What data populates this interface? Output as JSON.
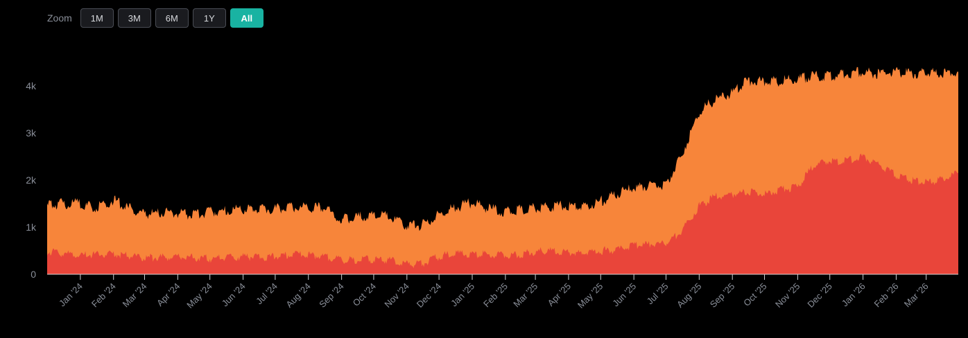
{
  "zoom": {
    "label": "Zoom",
    "buttons": [
      {
        "label": "1M",
        "active": false
      },
      {
        "label": "3M",
        "active": false
      },
      {
        "label": "6M",
        "active": false
      },
      {
        "label": "1Y",
        "active": false
      },
      {
        "label": "All",
        "active": true
      }
    ]
  },
  "colors": {
    "background": "#000000",
    "series_top": "#f7853a",
    "series_bottom": "#e9453a",
    "accent": "#19b3a2"
  },
  "chart_data": {
    "type": "area",
    "stacked": true,
    "grid": false,
    "legend": "none",
    "ylim": [
      0,
      4500
    ],
    "y_ticks": [
      {
        "value": 0,
        "label": "0"
      },
      {
        "value": 1000,
        "label": "1k"
      },
      {
        "value": 2000,
        "label": "2k"
      },
      {
        "value": 3000,
        "label": "3k"
      },
      {
        "value": 4000,
        "label": "4k"
      }
    ],
    "x_range": [
      "2023-12-01",
      "2026-03-31"
    ],
    "x_ticks": [
      {
        "date": "2024-01-01",
        "label": "Jan '24"
      },
      {
        "date": "2024-02-01",
        "label": "Feb '24"
      },
      {
        "date": "2024-03-01",
        "label": "Mar '24"
      },
      {
        "date": "2024-04-01",
        "label": "Apr '24"
      },
      {
        "date": "2024-05-01",
        "label": "May '24"
      },
      {
        "date": "2024-06-01",
        "label": "Jun '24"
      },
      {
        "date": "2024-07-01",
        "label": "Jul '24"
      },
      {
        "date": "2024-08-01",
        "label": "Aug '24"
      },
      {
        "date": "2024-09-01",
        "label": "Sep '24"
      },
      {
        "date": "2024-10-01",
        "label": "Oct '24"
      },
      {
        "date": "2024-11-01",
        "label": "Nov '24"
      },
      {
        "date": "2024-12-01",
        "label": "Dec '24"
      },
      {
        "date": "2025-01-01",
        "label": "Jan '25"
      },
      {
        "date": "2025-02-01",
        "label": "Feb '25"
      },
      {
        "date": "2025-03-01",
        "label": "Mar '25"
      },
      {
        "date": "2025-04-01",
        "label": "Apr '25"
      },
      {
        "date": "2025-05-01",
        "label": "May '25"
      },
      {
        "date": "2025-06-01",
        "label": "Jun '25"
      },
      {
        "date": "2025-07-01",
        "label": "Jul '25"
      },
      {
        "date": "2025-08-01",
        "label": "Aug '25"
      },
      {
        "date": "2025-09-01",
        "label": "Sep '25"
      },
      {
        "date": "2025-10-01",
        "label": "Oct '25"
      },
      {
        "date": "2025-11-01",
        "label": "Nov '25"
      },
      {
        "date": "2025-12-01",
        "label": "Dec '25"
      },
      {
        "date": "2026-01-01",
        "label": "Jan '26"
      },
      {
        "date": "2026-02-01",
        "label": "Feb '26"
      },
      {
        "date": "2026-03-01",
        "label": "Mar '26"
      }
    ],
    "x": [
      "2023-12-01",
      "2023-12-15",
      "2024-01-01",
      "2024-01-15",
      "2024-02-01",
      "2024-02-15",
      "2024-03-01",
      "2024-03-15",
      "2024-04-01",
      "2024-04-15",
      "2024-05-01",
      "2024-05-15",
      "2024-06-01",
      "2024-06-15",
      "2024-07-01",
      "2024-07-15",
      "2024-08-01",
      "2024-08-15",
      "2024-09-01",
      "2024-09-15",
      "2024-10-01",
      "2024-10-15",
      "2024-11-01",
      "2024-11-15",
      "2024-12-01",
      "2024-12-15",
      "2025-01-01",
      "2025-01-15",
      "2025-02-01",
      "2025-02-15",
      "2025-03-01",
      "2025-03-15",
      "2025-04-01",
      "2025-04-15",
      "2025-05-01",
      "2025-05-15",
      "2025-06-01",
      "2025-06-15",
      "2025-07-01",
      "2025-07-15",
      "2025-08-01",
      "2025-08-15",
      "2025-09-01",
      "2025-09-15",
      "2025-10-01",
      "2025-10-15",
      "2025-11-01",
      "2025-11-15",
      "2025-12-01",
      "2025-12-15",
      "2026-01-01",
      "2026-01-15",
      "2026-02-01",
      "2026-02-15",
      "2026-03-01",
      "2026-03-15",
      "2026-03-31"
    ],
    "series": [
      {
        "color": "#e9453a",
        "values": [
          480,
          450,
          400,
          420,
          430,
          400,
          350,
          360,
          370,
          360,
          330,
          360,
          380,
          360,
          370,
          420,
          410,
          390,
          300,
          310,
          320,
          310,
          210,
          220,
          380,
          450,
          420,
          420,
          400,
          420,
          480,
          500,
          450,
          470,
          500,
          520,
          600,
          640,
          650,
          900,
          1450,
          1650,
          1700,
          1750,
          1700,
          1800,
          1850,
          2300,
          2400,
          2400,
          2500,
          2350,
          2100,
          2000,
          1950,
          2000,
          2150
        ]
      },
      {
        "color": "#f7853a",
        "values": [
          970,
          1050,
          1100,
          980,
          1150,
          1000,
          930,
          940,
          930,
          910,
          1000,
          990,
          1000,
          1010,
          1030,
          1000,
          1000,
          1030,
          870,
          900,
          940,
          920,
          830,
          820,
          880,
          960,
          1100,
          980,
          930,
          960,
          920,
          950,
          1000,
          980,
          1050,
          1170,
          1230,
          1240,
          1260,
          1600,
          2000,
          2050,
          2150,
          2350,
          2400,
          2300,
          2300,
          1900,
          1800,
          1850,
          1800,
          1900,
          2200,
          2250,
          2350,
          2250,
          2150
        ]
      }
    ]
  }
}
